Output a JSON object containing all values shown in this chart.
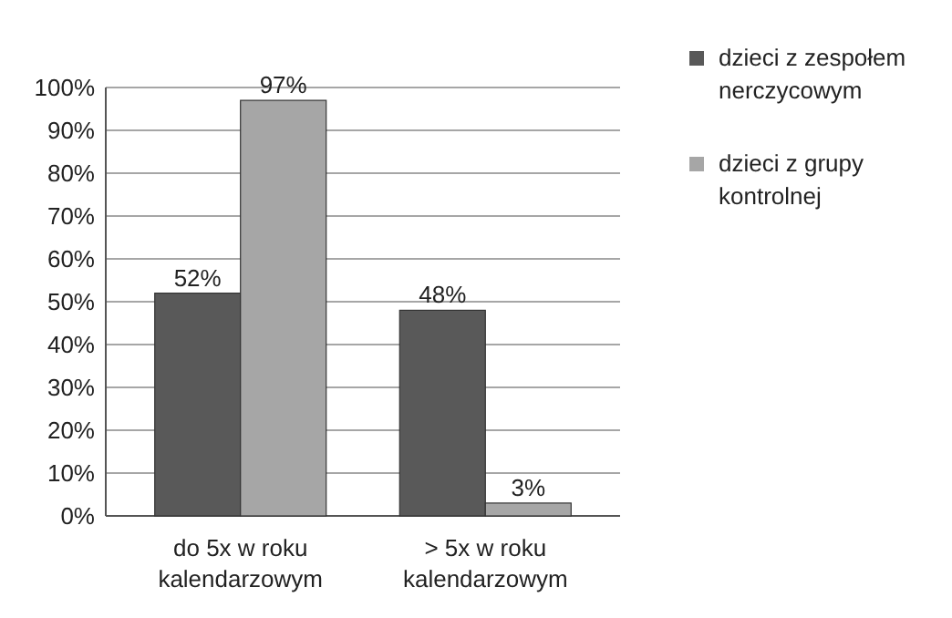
{
  "chart_data": {
    "type": "bar",
    "categories": [
      "do 5x w roku kalendarzowym",
      "> 5x w roku kalendarzowym"
    ],
    "series": [
      {
        "name": "dzieci z zespołem nerczycowym",
        "color": "#595959",
        "values": [
          52,
          48
        ],
        "value_labels": [
          "52%",
          "48%"
        ]
      },
      {
        "name": "dzieci z grupy kontrolnej",
        "color": "#a6a6a6",
        "values": [
          97,
          3
        ],
        "value_labels": [
          "97%",
          "3%"
        ]
      }
    ],
    "ylim": [
      0,
      100
    ],
    "yticks": [
      {
        "value": 0,
        "label": "0%"
      },
      {
        "value": 10,
        "label": "10%"
      },
      {
        "value": 20,
        "label": "20%"
      },
      {
        "value": 30,
        "label": "30%"
      },
      {
        "value": 40,
        "label": "40%"
      },
      {
        "value": 50,
        "label": "50%"
      },
      {
        "value": 60,
        "label": "60%"
      },
      {
        "value": 70,
        "label": "70%"
      },
      {
        "value": 80,
        "label": "80%"
      },
      {
        "value": 90,
        "label": "90%"
      },
      {
        "value": 100,
        "label": "100%"
      }
    ],
    "grid": "y",
    "legend": "right"
  }
}
